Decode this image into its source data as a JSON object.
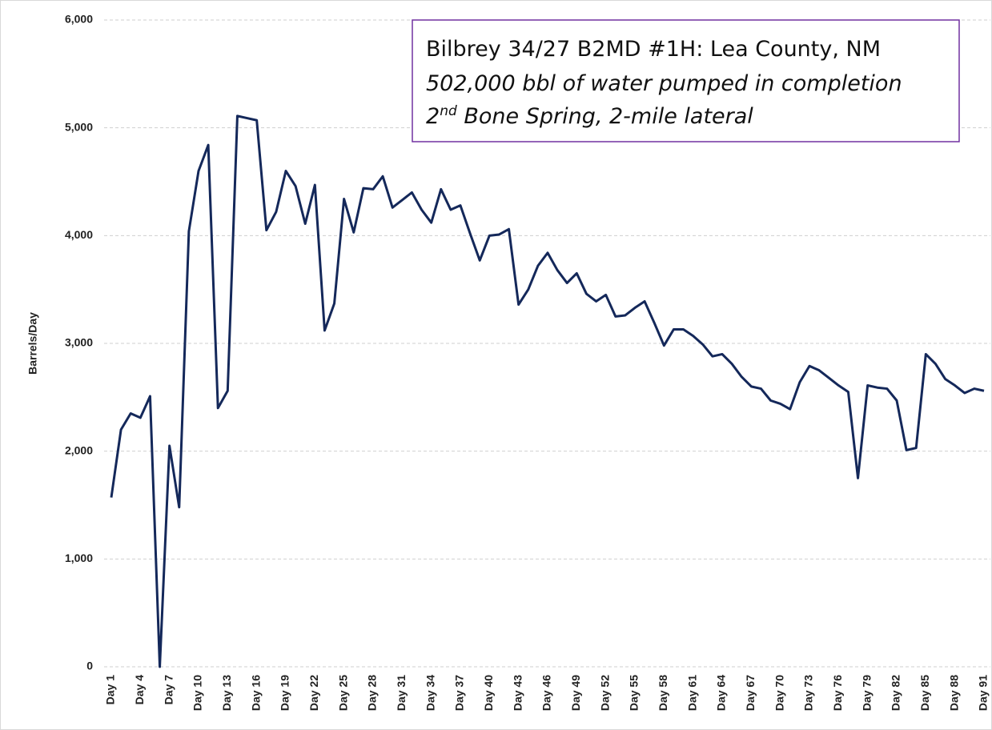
{
  "chart_data": {
    "type": "line",
    "y_label": "Barrels/Day",
    "annotation": {
      "line1": "Bilbrey 34/27 B2MD #1H: Lea County, NM",
      "line2": "502,000 bbl of water pumped in completion",
      "line3": [
        "2",
        "nd",
        " Bone Spring, 2-mile lateral"
      ]
    },
    "categories": [
      "Day 1",
      null,
      null,
      "Day 4",
      null,
      null,
      "Day 7",
      null,
      null,
      "Day 10",
      null,
      null,
      "Day 13",
      null,
      null,
      "Day 16",
      null,
      null,
      "Day 19",
      null,
      null,
      "Day 22",
      null,
      null,
      "Day 25",
      null,
      null,
      "Day 28",
      null,
      null,
      "Day 31",
      null,
      null,
      "Day 34",
      null,
      null,
      "Day 37",
      null,
      null,
      "Day 40",
      null,
      null,
      "Day 43",
      null,
      null,
      "Day 46",
      null,
      null,
      "Day 49",
      null,
      null,
      "Day 52",
      null,
      null,
      "Day 55",
      null,
      null,
      "Day 58",
      null,
      null,
      "Day 61",
      null,
      null,
      "Day 64",
      null,
      null,
      "Day 67",
      null,
      null,
      "Day 70",
      null,
      null,
      "Day 73",
      null,
      null,
      "Day 76",
      null,
      null,
      "Day 79",
      null,
      null,
      "Day 82",
      null,
      null,
      "Day 85",
      null,
      null,
      "Day 88",
      null,
      null,
      "Day 91"
    ],
    "series": [
      {
        "name": "Barrels/Day",
        "color": "#14285a",
        "values": [
          1570,
          2200,
          2350,
          2310,
          2510,
          0,
          2050,
          1480,
          4040,
          4600,
          4840,
          2400,
          2560,
          5110,
          5090,
          5070,
          4050,
          4220,
          4600,
          4460,
          4110,
          4470,
          3120,
          3370,
          4340,
          4030,
          4440,
          4430,
          4550,
          4260,
          4330,
          4400,
          4240,
          4120,
          4430,
          4240,
          4280,
          4020,
          3770,
          4000,
          4010,
          4060,
          3360,
          3500,
          3720,
          3840,
          3680,
          3560,
          3650,
          3460,
          3390,
          3450,
          3250,
          3260,
          3330,
          3390,
          3190,
          2980,
          3130,
          3130,
          3070,
          2990,
          2880,
          2900,
          2810,
          2690,
          2600,
          2580,
          2470,
          2440,
          2390,
          2640,
          2790,
          2750,
          2680,
          2610,
          2550,
          1750,
          2610,
          2590,
          2580,
          2470,
          2010,
          2030,
          2900,
          2810,
          2670,
          2610,
          2540,
          2580,
          2560
        ]
      }
    ],
    "ylim": [
      0,
      6000
    ],
    "yticks": [
      0,
      {
        "value": 1000,
        "label": "1,000"
      },
      {
        "value": 2000,
        "label": "2,000"
      },
      {
        "value": 3000,
        "label": "3,000"
      },
      {
        "value": 4000,
        "label": "4,000"
      },
      {
        "value": 5000,
        "label": "5,000"
      },
      {
        "value": 6000,
        "label": "6,000"
      }
    ],
    "grid": true
  }
}
